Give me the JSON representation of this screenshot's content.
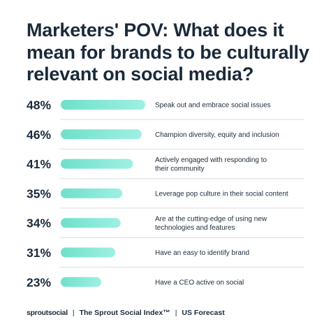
{
  "title": "Marketers' POV: What does it mean for brands to be culturally relevant on social media?",
  "colors": {
    "bar_start": "#6fe0cb",
    "bar_end": "#9ef0e2",
    "text": "#1b2a3a",
    "divider": "#d9dee3"
  },
  "chart_data": {
    "type": "bar",
    "orientation": "horizontal",
    "title": "Marketers' POV: What does it mean for brands to be culturally relevant on social media?",
    "categories": [
      "Speak out and embrace social issues",
      "Champion diversity, equity and inclusion",
      "Actively engaged with responding to their community",
      "Leverage pop culture in their social content",
      "Are at the cutting-edge of using new technologies and features",
      "Have an easy to identify brand",
      "Have a CEO active on social"
    ],
    "category_lines": [
      [
        "Speak out and embrace social issues"
      ],
      [
        "Champion diversity, equity and inclusion"
      ],
      [
        "Actively engaged with responding to",
        "their community"
      ],
      [
        "Leverage pop culture in their social content"
      ],
      [
        "Are at the cutting-edge of using new",
        "technologies and features"
      ],
      [
        "Have an easy to identify brand"
      ],
      [
        "Have a CEO active on social"
      ]
    ],
    "values": [
      48,
      46,
      41,
      35,
      34,
      31,
      23
    ],
    "value_labels": [
      "48%",
      "46%",
      "41%",
      "35%",
      "34%",
      "31%",
      "23%"
    ],
    "unit": "%",
    "grid": false
  },
  "footer": {
    "brand": "sproutsocial",
    "separator": "|",
    "report": "The Sprout Social Index™",
    "region": "US Forecast"
  }
}
